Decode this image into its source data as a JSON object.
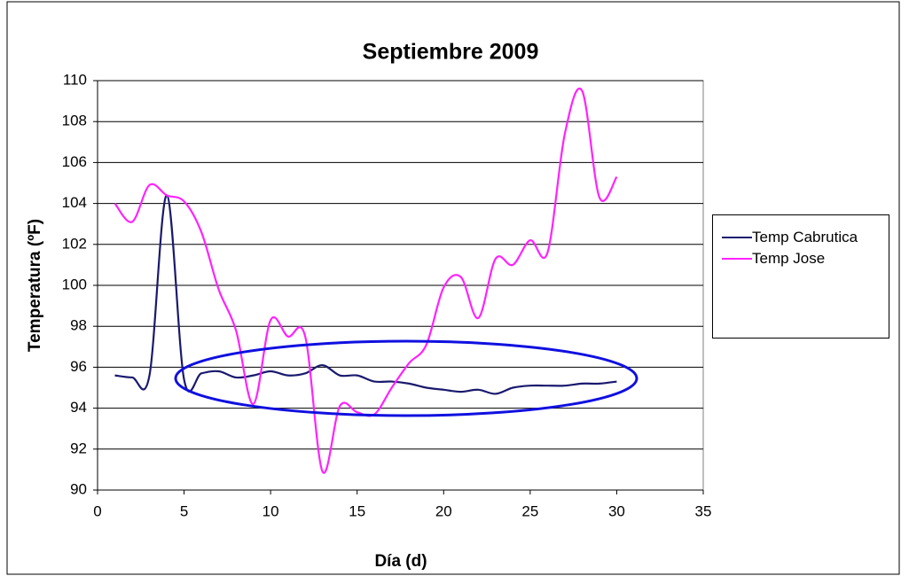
{
  "chart_data": {
    "type": "line",
    "title": "Septiembre 2009",
    "x_label": "Día (d)",
    "y_label": "Temperatura (ºF)",
    "x": [
      1,
      2,
      3,
      4,
      5,
      6,
      7,
      8,
      9,
      10,
      11,
      12,
      13,
      14,
      15,
      16,
      17,
      18,
      19,
      20,
      21,
      22,
      23,
      24,
      25,
      26,
      27,
      28,
      29,
      30
    ],
    "series": [
      {
        "name": "Temp Cabrutica",
        "color": "#1a1a6e",
        "values": [
          95.6,
          95.5,
          95.6,
          104.4,
          95.4,
          95.7,
          95.8,
          95.5,
          95.6,
          95.8,
          95.6,
          95.7,
          96.1,
          95.6,
          95.6,
          95.3,
          95.3,
          95.2,
          95.0,
          94.9,
          94.8,
          94.9,
          94.7,
          95.0,
          95.1,
          95.1,
          95.1,
          95.2,
          95.2,
          95.3
        ]
      },
      {
        "name": "Temp Jose",
        "color": "#ff22ff",
        "values": [
          104.0,
          103.1,
          104.9,
          104.4,
          104.1,
          102.6,
          99.8,
          97.8,
          94.2,
          98.3,
          97.5,
          97.5,
          90.9,
          94.1,
          93.8,
          93.7,
          95.0,
          96.2,
          97.1,
          99.9,
          100.4,
          98.4,
          101.3,
          101.0,
          102.2,
          101.6,
          107.4,
          109.5,
          104.3,
          105.3
        ]
      }
    ],
    "xlim": [
      0,
      35
    ],
    "xticks": [
      0,
      5,
      10,
      15,
      20,
      25,
      30,
      35
    ],
    "ylim": [
      90,
      110
    ],
    "yticks": [
      90,
      92,
      94,
      96,
      98,
      100,
      102,
      104,
      106,
      108,
      110
    ],
    "grid": true,
    "smooth": true,
    "legend": "right"
  }
}
